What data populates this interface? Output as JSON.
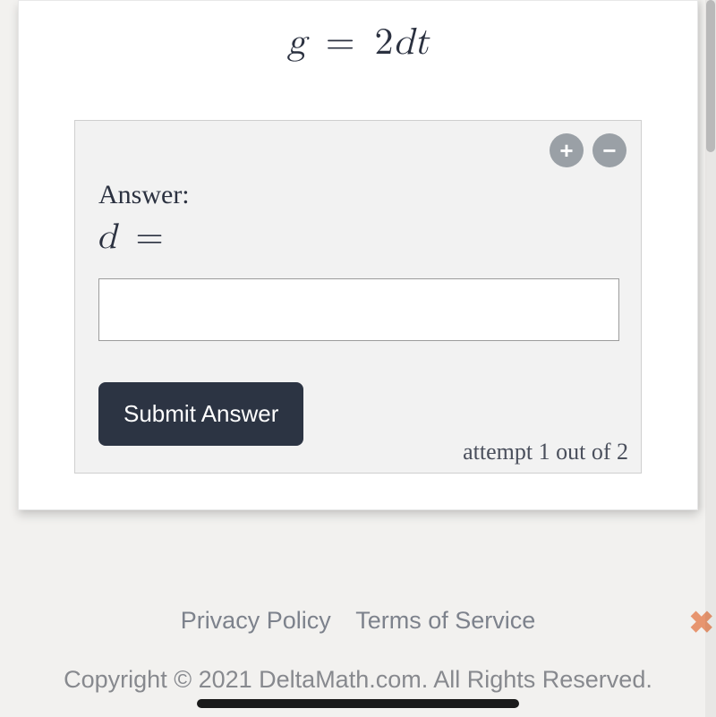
{
  "equation": {
    "lhs": "g",
    "op": "=",
    "rhs_coef": "2",
    "rhs_vars": "dt"
  },
  "panel": {
    "answer_label": "Answer:",
    "solve_var": "d",
    "solve_op": "=",
    "input_value": "",
    "submit_label": "Submit Answer",
    "attempt_text": "attempt 1 out of 2",
    "colors": {
      "panel_bg": "#f2f2f2",
      "panel_border": "#cfcfcf",
      "round_btn_bg": "#9aa0a6",
      "submit_bg": "#2c3443"
    }
  },
  "footer": {
    "privacy": "Privacy Policy",
    "terms": "Terms of Service",
    "copyright": "Copyright © 2021 DeltaMath.com. All Rights Reserved."
  },
  "icons": {
    "plus": "+",
    "minus": "−",
    "close": "✖"
  },
  "colors": {
    "page_bg": "#f2f1ef",
    "card_bg": "#ffffff",
    "text": "#2b3140",
    "footer_text": "#7d828c",
    "close_color": "#e7956f"
  }
}
